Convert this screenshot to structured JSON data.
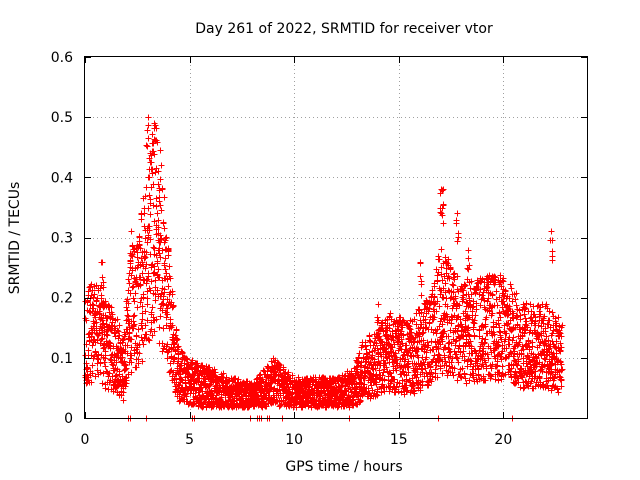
{
  "chart_data": {
    "type": "scatter",
    "title": "Day 261 of 2022, SRMTID for receiver vtor",
    "xlabel": "GPS time / hours",
    "ylabel": "SRMTID / TECUs",
    "xlim": [
      0,
      24
    ],
    "ylim": [
      0,
      0.6
    ],
    "xticks": [
      0,
      5,
      10,
      15,
      20
    ],
    "xtick_labels": [
      "0",
      "5",
      "10",
      "15",
      "20"
    ],
    "yticks": [
      0,
      0.1,
      0.2,
      0.3,
      0.4,
      0.5,
      0.6
    ],
    "ytick_labels": [
      "0",
      "0.1",
      "0.2",
      "0.3",
      "0.4",
      "0.5",
      "0.6"
    ],
    "grid": true,
    "marker": "+",
    "color": "#ff0000",
    "series": [
      {
        "name": "SRMTID",
        "trend": [
          [
            0.0,
            0.13
          ],
          [
            0.5,
            0.15
          ],
          [
            1.0,
            0.12
          ],
          [
            1.5,
            0.11
          ],
          [
            1.8,
            0.08
          ],
          [
            2.2,
            0.18
          ],
          [
            2.6,
            0.2
          ],
          [
            3.0,
            0.27
          ],
          [
            3.3,
            0.32
          ],
          [
            3.6,
            0.28
          ],
          [
            3.9,
            0.2
          ],
          [
            4.2,
            0.12
          ],
          [
            4.5,
            0.07
          ],
          [
            5.0,
            0.06
          ],
          [
            6.0,
            0.05
          ],
          [
            7.0,
            0.04
          ],
          [
            8.0,
            0.035
          ],
          [
            9.0,
            0.06
          ],
          [
            10.0,
            0.04
          ],
          [
            11.0,
            0.04
          ],
          [
            12.0,
            0.04
          ],
          [
            12.8,
            0.05
          ],
          [
            13.3,
            0.08
          ],
          [
            13.8,
            0.09
          ],
          [
            14.5,
            0.11
          ],
          [
            15.5,
            0.1
          ],
          [
            16.5,
            0.13
          ],
          [
            17.0,
            0.18
          ],
          [
            17.5,
            0.16
          ],
          [
            18.0,
            0.14
          ],
          [
            19.0,
            0.15
          ],
          [
            20.0,
            0.15
          ],
          [
            21.0,
            0.12
          ],
          [
            22.0,
            0.12
          ],
          [
            22.8,
            0.1
          ]
        ],
        "spikes": [
          [
            3.0,
            0.5
          ],
          [
            3.3,
            0.49
          ],
          [
            3.1,
            0.44
          ],
          [
            3.5,
            0.41
          ],
          [
            2.2,
            0.31
          ],
          [
            17.0,
            0.38
          ],
          [
            17.1,
            0.38
          ],
          [
            17.8,
            0.34
          ],
          [
            18.3,
            0.28
          ],
          [
            22.3,
            0.31
          ],
          [
            0.8,
            0.26
          ],
          [
            14.0,
            0.19
          ],
          [
            16.0,
            0.26
          ],
          [
            9.0,
            0.1
          ]
        ],
        "zero_points": [
          2.05,
          2.15,
          2.9,
          5.1,
          5.2,
          7.9,
          8.2,
          8.3,
          8.4,
          8.7,
          8.8,
          9.4,
          12.6,
          16.9,
          20.4
        ]
      }
    ]
  }
}
